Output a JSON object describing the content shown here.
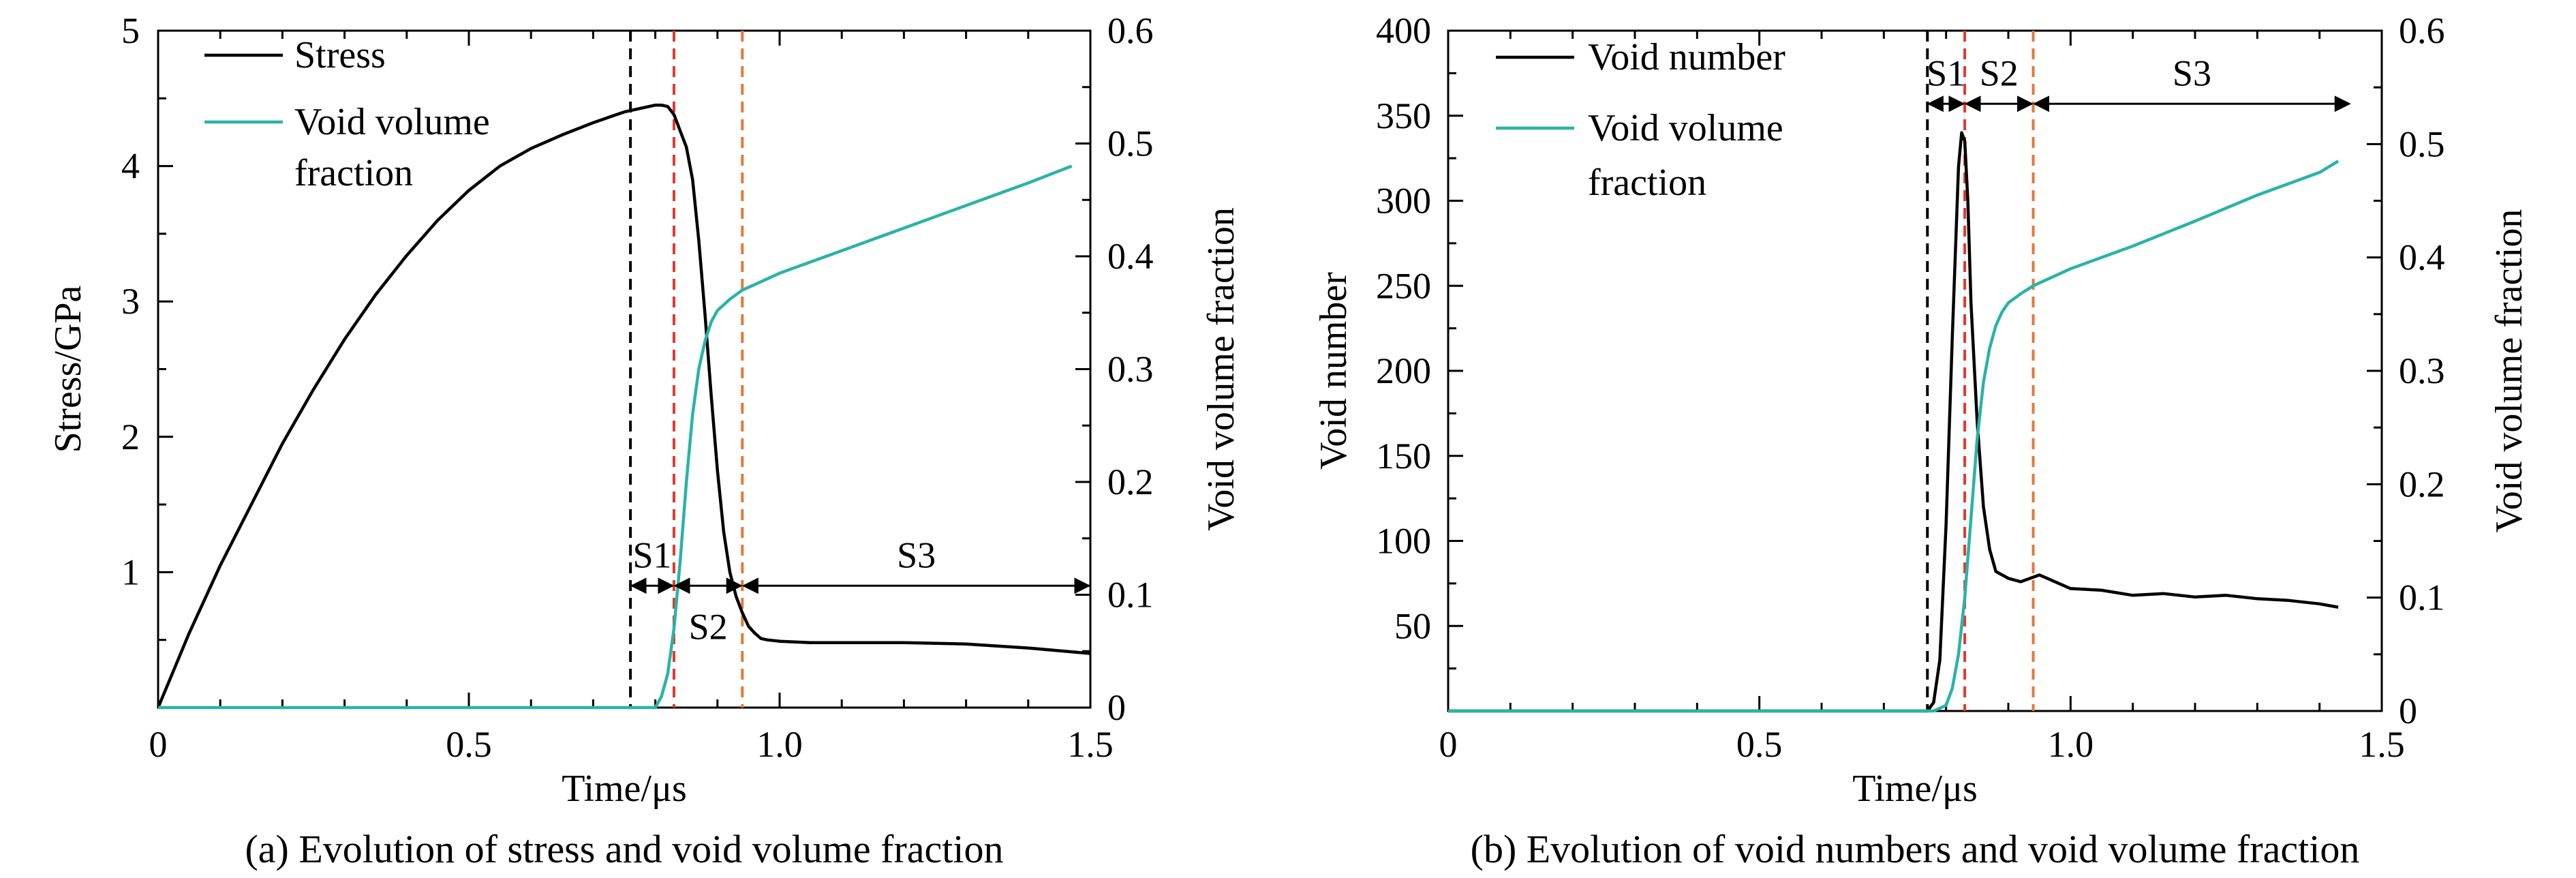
{
  "chart_data": [
    {
      "type": "line",
      "panel": "a",
      "caption": "(a) Evolution of stress and void volume fraction",
      "xlabel": "Time/μs",
      "ylabel_left": "Stress/GPa",
      "ylabel_right": "Void volume fraction",
      "xlim": [
        0,
        1.5
      ],
      "ylim_left": [
        0,
        5
      ],
      "ylim_right": [
        0,
        0.6
      ],
      "x_ticks": [
        "0",
        "0.5",
        "1.0",
        "1.5"
      ],
      "y_left_ticks": [
        "1",
        "2",
        "3",
        "4",
        "5"
      ],
      "y_right_ticks": [
        "0",
        "0.1",
        "0.2",
        "0.3",
        "0.4",
        "0.5",
        "0.6"
      ],
      "legend": [
        "Stress",
        "Void volume",
        "fraction"
      ],
      "colors": {
        "stress": "#000000",
        "void_fraction": "#2ab3a6",
        "line1": "#000000",
        "line2": "#e03a2e",
        "line3": "#e07a3a"
      },
      "series": [
        {
          "name": "Stress",
          "axis": "left",
          "x": [
            0,
            0.05,
            0.1,
            0.15,
            0.2,
            0.25,
            0.3,
            0.35,
            0.4,
            0.45,
            0.5,
            0.55,
            0.6,
            0.65,
            0.7,
            0.75,
            0.78,
            0.8,
            0.81,
            0.82,
            0.83,
            0.84,
            0.85,
            0.86,
            0.87,
            0.88,
            0.89,
            0.9,
            0.91,
            0.92,
            0.93,
            0.94,
            0.95,
            0.96,
            0.97,
            0.98,
            1.0,
            1.05,
            1.1,
            1.2,
            1.3,
            1.4,
            1.45,
            1.5
          ],
          "y": [
            0,
            0.55,
            1.05,
            1.5,
            1.95,
            2.35,
            2.72,
            3.05,
            3.34,
            3.6,
            3.82,
            4.0,
            4.13,
            4.23,
            4.32,
            4.4,
            4.43,
            4.45,
            4.45,
            4.44,
            4.38,
            4.26,
            4.14,
            3.9,
            3.45,
            2.9,
            2.3,
            1.75,
            1.3,
            1.0,
            0.82,
            0.7,
            0.6,
            0.55,
            0.51,
            0.5,
            0.49,
            0.48,
            0.48,
            0.48,
            0.47,
            0.44,
            0.42,
            0.4
          ]
        },
        {
          "name": "Void volume fraction",
          "axis": "right",
          "x": [
            0,
            0.5,
            0.76,
            0.8,
            0.81,
            0.82,
            0.83,
            0.84,
            0.85,
            0.86,
            0.87,
            0.88,
            0.89,
            0.9,
            0.92,
            0.94,
            0.96,
            1.0,
            1.1,
            1.2,
            1.3,
            1.4,
            1.47
          ],
          "y": [
            0,
            0,
            0,
            0,
            0.01,
            0.03,
            0.07,
            0.13,
            0.2,
            0.26,
            0.3,
            0.325,
            0.342,
            0.352,
            0.362,
            0.37,
            0.375,
            0.385,
            0.405,
            0.425,
            0.445,
            0.465,
            0.48
          ]
        }
      ],
      "vlines": [
        0.76,
        0.83,
        0.94
      ],
      "stages": [
        {
          "label": "S1",
          "from": 0.76,
          "to": 0.83,
          "y": 0.9
        },
        {
          "label": "S2",
          "from": 0.83,
          "to": 0.94,
          "y": 0.9
        },
        {
          "label": "S3",
          "from": 0.94,
          "to": 1.5,
          "y": 0.9
        }
      ]
    },
    {
      "type": "line",
      "panel": "b",
      "caption": "(b) Evolution of void numbers and void volume fraction",
      "xlabel": "Time/μs",
      "ylabel_left": "Void number",
      "ylabel_right": "Void volume fraction",
      "xlim": [
        0,
        1.5
      ],
      "ylim_left": [
        0,
        400
      ],
      "ylim_right": [
        0,
        0.6
      ],
      "x_ticks": [
        "0",
        "0.5",
        "1.0",
        "1.5"
      ],
      "y_left_ticks": [
        "50",
        "100",
        "150",
        "200",
        "250",
        "300",
        "350",
        "400"
      ],
      "y_right_ticks": [
        "0",
        "0.1",
        "0.2",
        "0.3",
        "0.4",
        "0.5",
        "0.6"
      ],
      "legend": [
        "Void number",
        "Void volume",
        "fraction"
      ],
      "colors": {
        "void_number": "#000000",
        "void_fraction": "#2ab3a6",
        "line1": "#000000",
        "line2": "#e03a2e",
        "line3": "#e07a3a"
      },
      "series": [
        {
          "name": "Void number",
          "axis": "left",
          "x": [
            0,
            0.5,
            0.77,
            0.78,
            0.79,
            0.8,
            0.81,
            0.82,
            0.825,
            0.83,
            0.835,
            0.84,
            0.85,
            0.86,
            0.87,
            0.88,
            0.89,
            0.9,
            0.92,
            0.95,
            1.0,
            1.05,
            1.1,
            1.15,
            1.2,
            1.25,
            1.3,
            1.35,
            1.4,
            1.43
          ],
          "y": [
            0,
            0,
            0,
            5,
            30,
            110,
            220,
            320,
            340,
            335,
            300,
            240,
            170,
            120,
            95,
            82,
            80,
            78,
            76,
            80,
            72,
            71,
            68,
            69,
            67,
            68,
            66,
            65,
            63,
            61
          ]
        },
        {
          "name": "Void volume fraction",
          "axis": "right",
          "x": [
            0,
            0.5,
            0.78,
            0.8,
            0.81,
            0.82,
            0.83,
            0.84,
            0.85,
            0.86,
            0.87,
            0.88,
            0.89,
            0.9,
            0.92,
            0.94,
            0.96,
            1.0,
            1.1,
            1.2,
            1.3,
            1.4,
            1.43
          ],
          "y": [
            0,
            0,
            0,
            0.005,
            0.02,
            0.05,
            0.1,
            0.17,
            0.24,
            0.29,
            0.32,
            0.34,
            0.352,
            0.36,
            0.368,
            0.375,
            0.38,
            0.39,
            0.41,
            0.432,
            0.455,
            0.475,
            0.485
          ]
        }
      ],
      "vlines": [
        0.77,
        0.83,
        0.94
      ],
      "stages": [
        {
          "label": "S1",
          "from": 0.77,
          "to": 0.83,
          "y": 357
        },
        {
          "label": "S2",
          "from": 0.83,
          "to": 0.94,
          "y": 357
        },
        {
          "label": "S3",
          "from": 0.94,
          "to": 1.45,
          "y": 357
        }
      ]
    }
  ]
}
